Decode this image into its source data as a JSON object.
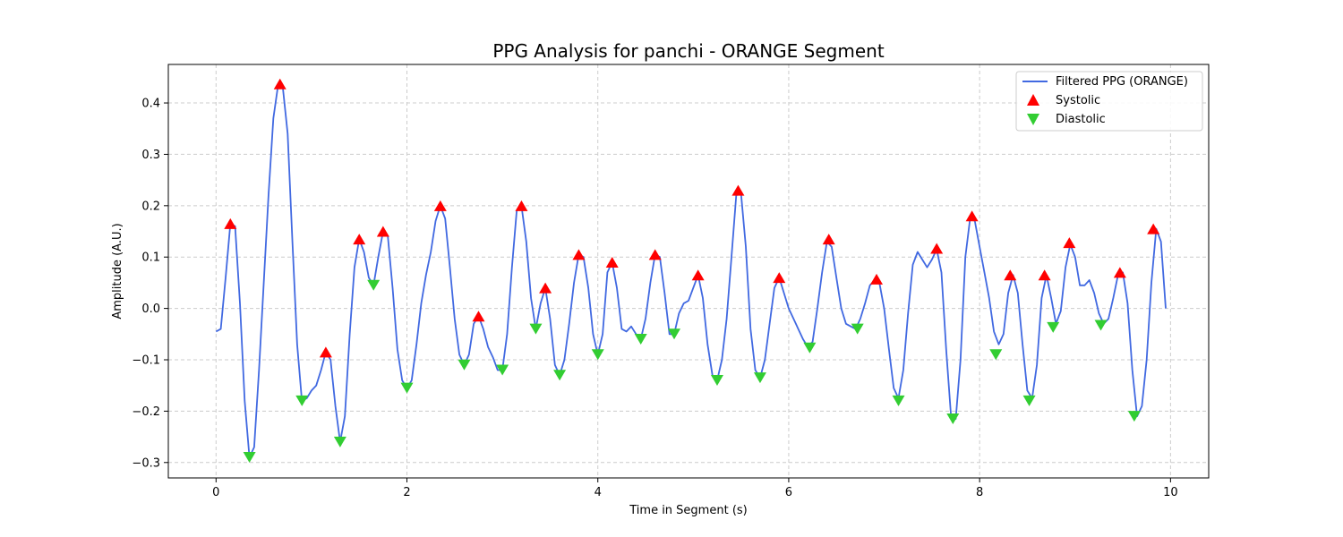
{
  "chart_data": {
    "type": "line",
    "title": "PPG Analysis for panchi - ORANGE Segment",
    "xlabel": "Time in Segment (s)",
    "ylabel": "Amplitude (A.U.)",
    "xlim": [
      -0.5,
      10.4
    ],
    "ylim": [
      -0.33,
      0.475
    ],
    "xticks": [
      0,
      2,
      4,
      6,
      8,
      10
    ],
    "yticks": [
      -0.3,
      -0.2,
      -0.1,
      0.0,
      0.1,
      0.2,
      0.3,
      0.4
    ],
    "xtick_labels": [
      "0",
      "2",
      "4",
      "6",
      "8",
      "10"
    ],
    "ytick_labels": [
      "−0.3",
      "−0.2",
      "−0.1",
      "0.0",
      "0.1",
      "0.2",
      "0.3",
      "0.4"
    ],
    "grid": true,
    "legend_position": "top-right",
    "colors": {
      "line": "#4169e1",
      "systolic": "#ff0000",
      "diastolic": "#32cd32"
    },
    "series": [
      {
        "name": "Filtered PPG (ORANGE)",
        "kind": "line",
        "points": [
          [
            0.0,
            -0.045
          ],
          [
            0.05,
            -0.04
          ],
          [
            0.1,
            0.06
          ],
          [
            0.15,
            0.165
          ],
          [
            0.2,
            0.16
          ],
          [
            0.25,
            0.01
          ],
          [
            0.3,
            -0.18
          ],
          [
            0.35,
            -0.29
          ],
          [
            0.4,
            -0.27
          ],
          [
            0.45,
            -0.12
          ],
          [
            0.5,
            0.05
          ],
          [
            0.55,
            0.22
          ],
          [
            0.6,
            0.37
          ],
          [
            0.65,
            0.435
          ],
          [
            0.7,
            0.43
          ],
          [
            0.75,
            0.34
          ],
          [
            0.8,
            0.13
          ],
          [
            0.85,
            -0.07
          ],
          [
            0.9,
            -0.18
          ],
          [
            0.95,
            -0.175
          ],
          [
            1.0,
            -0.16
          ],
          [
            1.05,
            -0.15
          ],
          [
            1.1,
            -0.12
          ],
          [
            1.15,
            -0.085
          ],
          [
            1.2,
            -0.1
          ],
          [
            1.25,
            -0.19
          ],
          [
            1.3,
            -0.26
          ],
          [
            1.35,
            -0.21
          ],
          [
            1.4,
            -0.05
          ],
          [
            1.45,
            0.08
          ],
          [
            1.5,
            0.135
          ],
          [
            1.55,
            0.11
          ],
          [
            1.6,
            0.06
          ],
          [
            1.65,
            0.045
          ],
          [
            1.7,
            0.1
          ],
          [
            1.75,
            0.15
          ],
          [
            1.8,
            0.14
          ],
          [
            1.85,
            0.04
          ],
          [
            1.9,
            -0.08
          ],
          [
            1.95,
            -0.14
          ],
          [
            2.0,
            -0.155
          ],
          [
            2.05,
            -0.14
          ],
          [
            2.1,
            -0.07
          ],
          [
            2.15,
            0.01
          ],
          [
            2.2,
            0.065
          ],
          [
            2.25,
            0.11
          ],
          [
            2.3,
            0.17
          ],
          [
            2.35,
            0.2
          ],
          [
            2.4,
            0.175
          ],
          [
            2.45,
            0.08
          ],
          [
            2.5,
            -0.02
          ],
          [
            2.55,
            -0.09
          ],
          [
            2.6,
            -0.11
          ],
          [
            2.65,
            -0.09
          ],
          [
            2.7,
            -0.03
          ],
          [
            2.75,
            -0.015
          ],
          [
            2.8,
            -0.04
          ],
          [
            2.85,
            -0.075
          ],
          [
            2.9,
            -0.095
          ],
          [
            2.95,
            -0.12
          ],
          [
            3.0,
            -0.12
          ],
          [
            3.05,
            -0.05
          ],
          [
            3.1,
            0.08
          ],
          [
            3.15,
            0.19
          ],
          [
            3.2,
            0.2
          ],
          [
            3.25,
            0.13
          ],
          [
            3.3,
            0.02
          ],
          [
            3.35,
            -0.04
          ],
          [
            3.4,
            0.01
          ],
          [
            3.45,
            0.04
          ],
          [
            3.5,
            -0.02
          ],
          [
            3.55,
            -0.11
          ],
          [
            3.6,
            -0.13
          ],
          [
            3.65,
            -0.1
          ],
          [
            3.7,
            -0.03
          ],
          [
            3.75,
            0.05
          ],
          [
            3.8,
            0.105
          ],
          [
            3.85,
            0.1
          ],
          [
            3.9,
            0.04
          ],
          [
            3.95,
            -0.05
          ],
          [
            4.0,
            -0.09
          ],
          [
            4.05,
            -0.05
          ],
          [
            4.1,
            0.07
          ],
          [
            4.15,
            0.09
          ],
          [
            4.2,
            0.04
          ],
          [
            4.25,
            -0.04
          ],
          [
            4.3,
            -0.045
          ],
          [
            4.35,
            -0.035
          ],
          [
            4.4,
            -0.05
          ],
          [
            4.45,
            -0.06
          ],
          [
            4.5,
            -0.02
          ],
          [
            4.55,
            0.05
          ],
          [
            4.6,
            0.105
          ],
          [
            4.65,
            0.1
          ],
          [
            4.7,
            0.03
          ],
          [
            4.75,
            -0.05
          ],
          [
            4.8,
            -0.05
          ],
          [
            4.85,
            -0.01
          ],
          [
            4.9,
            0.01
          ],
          [
            4.95,
            0.015
          ],
          [
            5.0,
            0.04
          ],
          [
            5.05,
            0.065
          ],
          [
            5.1,
            0.02
          ],
          [
            5.15,
            -0.07
          ],
          [
            5.2,
            -0.13
          ],
          [
            5.25,
            -0.14
          ],
          [
            5.3,
            -0.1
          ],
          [
            5.35,
            -0.02
          ],
          [
            5.4,
            0.1
          ],
          [
            5.45,
            0.22
          ],
          [
            5.5,
            0.225
          ],
          [
            5.55,
            0.12
          ],
          [
            5.6,
            -0.04
          ],
          [
            5.65,
            -0.12
          ],
          [
            5.7,
            -0.135
          ],
          [
            5.75,
            -0.1
          ],
          [
            5.8,
            -0.03
          ],
          [
            5.85,
            0.04
          ],
          [
            5.9,
            0.06
          ],
          [
            5.95,
            0.03
          ],
          [
            6.0,
            0.0
          ],
          [
            6.05,
            -0.02
          ],
          [
            6.1,
            -0.04
          ],
          [
            6.15,
            -0.06
          ],
          [
            6.2,
            -0.075
          ],
          [
            6.25,
            -0.065
          ],
          [
            6.3,
            0.0
          ],
          [
            6.35,
            0.07
          ],
          [
            6.4,
            0.13
          ],
          [
            6.45,
            0.12
          ],
          [
            6.5,
            0.06
          ],
          [
            6.55,
            0.0
          ],
          [
            6.6,
            -0.03
          ],
          [
            6.65,
            -0.035
          ],
          [
            6.7,
            -0.04
          ],
          [
            6.75,
            -0.02
          ],
          [
            6.8,
            0.01
          ],
          [
            6.85,
            0.045
          ],
          [
            6.9,
            0.055
          ],
          [
            6.95,
            0.05
          ],
          [
            7.0,
            0.0
          ],
          [
            7.05,
            -0.08
          ],
          [
            7.1,
            -0.155
          ],
          [
            7.15,
            -0.175
          ],
          [
            7.2,
            -0.12
          ],
          [
            7.25,
            -0.01
          ],
          [
            7.3,
            0.085
          ],
          [
            7.35,
            0.11
          ],
          [
            7.4,
            0.095
          ],
          [
            7.45,
            0.08
          ],
          [
            7.5,
            0.095
          ],
          [
            7.55,
            0.115
          ],
          [
            7.6,
            0.07
          ],
          [
            7.65,
            -0.08
          ],
          [
            7.7,
            -0.21
          ],
          [
            7.75,
            -0.215
          ],
          [
            7.8,
            -0.1
          ],
          [
            7.85,
            0.1
          ],
          [
            7.9,
            0.175
          ],
          [
            7.95,
            0.17
          ],
          [
            8.0,
            0.12
          ],
          [
            8.05,
            0.07
          ],
          [
            8.1,
            0.02
          ],
          [
            8.15,
            -0.045
          ],
          [
            8.2,
            -0.07
          ],
          [
            8.25,
            -0.05
          ],
          [
            8.3,
            0.03
          ],
          [
            8.35,
            0.065
          ],
          [
            8.4,
            0.03
          ],
          [
            8.45,
            -0.07
          ],
          [
            8.5,
            -0.16
          ],
          [
            8.55,
            -0.175
          ],
          [
            8.6,
            -0.11
          ],
          [
            8.65,
            0.02
          ],
          [
            8.7,
            0.065
          ],
          [
            8.75,
            0.02
          ],
          [
            8.8,
            -0.03
          ],
          [
            8.85,
            -0.005
          ],
          [
            8.9,
            0.08
          ],
          [
            8.95,
            0.125
          ],
          [
            9.0,
            0.1
          ],
          [
            9.05,
            0.045
          ],
          [
            9.1,
            0.045
          ],
          [
            9.15,
            0.055
          ],
          [
            9.2,
            0.03
          ],
          [
            9.25,
            -0.01
          ],
          [
            9.3,
            -0.03
          ],
          [
            9.35,
            -0.02
          ],
          [
            9.4,
            0.02
          ],
          [
            9.45,
            0.065
          ],
          [
            9.5,
            0.07
          ],
          [
            9.55,
            0.01
          ],
          [
            9.6,
            -0.12
          ],
          [
            9.65,
            -0.21
          ],
          [
            9.7,
            -0.19
          ],
          [
            9.75,
            -0.1
          ],
          [
            9.8,
            0.05
          ],
          [
            9.85,
            0.155
          ],
          [
            9.9,
            0.13
          ],
          [
            9.95,
            0.0
          ]
        ]
      },
      {
        "name": "Systolic",
        "kind": "marker-up",
        "points": [
          [
            0.15,
            0.165
          ],
          [
            0.67,
            0.437
          ],
          [
            1.15,
            -0.085
          ],
          [
            1.5,
            0.135
          ],
          [
            1.75,
            0.15
          ],
          [
            2.35,
            0.2
          ],
          [
            2.75,
            -0.015
          ],
          [
            3.2,
            0.2
          ],
          [
            3.45,
            0.04
          ],
          [
            3.8,
            0.105
          ],
          [
            4.15,
            0.09
          ],
          [
            4.6,
            0.105
          ],
          [
            5.05,
            0.065
          ],
          [
            5.47,
            0.23
          ],
          [
            5.9,
            0.06
          ],
          [
            6.42,
            0.135
          ],
          [
            6.92,
            0.057
          ],
          [
            7.55,
            0.117
          ],
          [
            7.92,
            0.18
          ],
          [
            8.32,
            0.065
          ],
          [
            8.68,
            0.065
          ],
          [
            8.94,
            0.128
          ],
          [
            9.47,
            0.07
          ],
          [
            9.82,
            0.155
          ]
        ]
      },
      {
        "name": "Diastolic",
        "kind": "marker-down",
        "points": [
          [
            0.35,
            -0.29
          ],
          [
            0.9,
            -0.18
          ],
          [
            1.3,
            -0.26
          ],
          [
            1.65,
            0.045
          ],
          [
            2.0,
            -0.155
          ],
          [
            2.6,
            -0.11
          ],
          [
            3.0,
            -0.12
          ],
          [
            3.35,
            -0.04
          ],
          [
            3.6,
            -0.13
          ],
          [
            4.0,
            -0.09
          ],
          [
            4.45,
            -0.06
          ],
          [
            4.8,
            -0.05
          ],
          [
            5.25,
            -0.14
          ],
          [
            5.7,
            -0.135
          ],
          [
            6.22,
            -0.077
          ],
          [
            6.72,
            -0.04
          ],
          [
            7.15,
            -0.18
          ],
          [
            7.72,
            -0.215
          ],
          [
            8.17,
            -0.09
          ],
          [
            8.52,
            -0.18
          ],
          [
            8.77,
            -0.037
          ],
          [
            9.27,
            -0.033
          ],
          [
            9.62,
            -0.21
          ]
        ]
      }
    ]
  }
}
